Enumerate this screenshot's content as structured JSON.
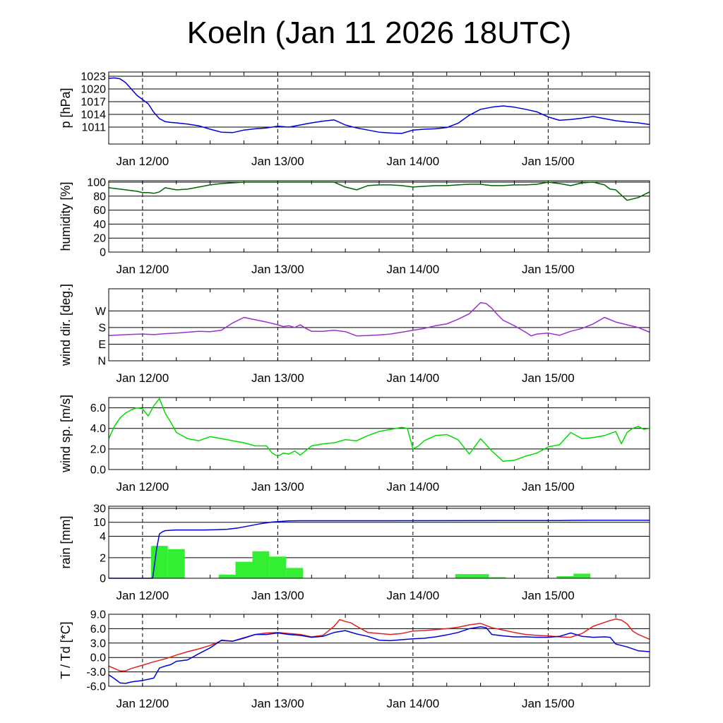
{
  "title": "Koeln (Jan 11 2026 18UTC)",
  "colors": {
    "frame": "#000000",
    "grid": "#000000",
    "background": "#ffffff"
  },
  "x_axis": {
    "unit": "hours since Jan 11 18UTC",
    "range": [
      0,
      96
    ],
    "ticks": [
      {
        "h": 6,
        "label": "Jan 12/00"
      },
      {
        "h": 30,
        "label": "Jan 13/00"
      },
      {
        "h": 54,
        "label": "Jan 14/00"
      },
      {
        "h": 78,
        "label": "Jan 15/00"
      }
    ]
  },
  "chart_data": [
    {
      "type": "line",
      "ylabel": "p [hPa]",
      "ylim": [
        1007,
        1024
      ],
      "yticks": [
        1011,
        1014,
        1017,
        1020,
        1023
      ],
      "series": [
        {
          "name": "pressure",
          "color": "#0000dd",
          "x": [
            0,
            1,
            2,
            3,
            4,
            5,
            6,
            7,
            8,
            9,
            10,
            11,
            12,
            14,
            16,
            18,
            20,
            22,
            24,
            26,
            28,
            30,
            32,
            34,
            36,
            38,
            40,
            42,
            44,
            46,
            48,
            50,
            52,
            54,
            56,
            58,
            60,
            62,
            64,
            66,
            68,
            70,
            72,
            74,
            76,
            78,
            80,
            82,
            84,
            86,
            88,
            90,
            92,
            94,
            96
          ],
          "y": [
            1022.5,
            1022.6,
            1022.4,
            1021.5,
            1020,
            1018.5,
            1017.5,
            1016.5,
            1014.5,
            1013,
            1012.3,
            1012.1,
            1012,
            1011.7,
            1011.3,
            1010.5,
            1009.8,
            1009.7,
            1010.3,
            1010.6,
            1010.8,
            1011.2,
            1011,
            1011.5,
            1012,
            1012.4,
            1012.7,
            1011.5,
            1010.8,
            1010.3,
            1009.8,
            1009.6,
            1009.5,
            1010.3,
            1010.5,
            1010.6,
            1010.9,
            1011.9,
            1013.8,
            1015.2,
            1015.7,
            1016,
            1015.7,
            1015.2,
            1014.6,
            1013.4,
            1012.6,
            1012.8,
            1013.1,
            1013.5,
            1013,
            1012.5,
            1012.2,
            1012,
            1011.6
          ]
        }
      ]
    },
    {
      "type": "line",
      "ylabel": "humidity [%]",
      "ylim": [
        0,
        102
      ],
      "yticks": [
        0,
        20,
        40,
        60,
        80,
        100
      ],
      "series": [
        {
          "name": "relative humidity",
          "color": "#006400",
          "x": [
            0,
            2,
            4,
            5,
            6,
            7,
            8,
            9,
            10,
            12,
            14,
            16,
            18,
            20,
            24,
            28,
            32,
            36,
            38,
            40,
            42,
            44,
            46,
            48,
            50,
            52,
            54,
            56,
            58,
            60,
            62,
            64,
            66,
            68,
            70,
            72,
            74,
            76,
            78,
            80,
            82,
            84,
            86,
            88,
            89,
            90,
            92,
            94,
            96
          ],
          "y": [
            92,
            90,
            88,
            87,
            85,
            85,
            84,
            86,
            92,
            89,
            90,
            93,
            96,
            98,
            100,
            100,
            100,
            100,
            100,
            100,
            93,
            89,
            95,
            96,
            96,
            95,
            93,
            94,
            95,
            95,
            96,
            97,
            97,
            95,
            95,
            96,
            96,
            97,
            100,
            98,
            95,
            99,
            100,
            96,
            90,
            89,
            74,
            78,
            86
          ]
        }
      ]
    },
    {
      "type": "line",
      "ylabel": "wind dir. [deg.]",
      "ylim": [
        0,
        390
      ],
      "yticks": [
        0,
        90,
        180,
        270
      ],
      "yticklabels": [
        "N",
        "E",
        "S",
        "W"
      ],
      "series": [
        {
          "name": "wind direction",
          "color": "#9932cc",
          "x": [
            0,
            2,
            4,
            6,
            8,
            10,
            12,
            14,
            16,
            18,
            20,
            22,
            24,
            26,
            28,
            30,
            31,
            32,
            33,
            34,
            35,
            36,
            38,
            40,
            42,
            44,
            46,
            48,
            50,
            52,
            54,
            56,
            58,
            60,
            62,
            64,
            66,
            67,
            68,
            69,
            70,
            72,
            74,
            75,
            76,
            78,
            80,
            82,
            84,
            86,
            88,
            90,
            92,
            94,
            96
          ],
          "y": [
            137,
            140,
            143,
            145,
            142,
            147,
            150,
            155,
            160,
            158,
            165,
            205,
            235,
            222,
            210,
            195,
            185,
            190,
            180,
            195,
            175,
            160,
            160,
            165,
            158,
            135,
            137,
            140,
            145,
            155,
            165,
            175,
            190,
            200,
            225,
            255,
            315,
            310,
            285,
            250,
            220,
            190,
            155,
            135,
            145,
            150,
            138,
            160,
            175,
            200,
            235,
            210,
            195,
            180,
            155
          ]
        }
      ]
    },
    {
      "type": "line",
      "ylabel": "wind sp. [m/s]",
      "ylim": [
        0,
        7
      ],
      "yticks": [
        0,
        2,
        4,
        6
      ],
      "yticklabels": [
        "0.0",
        "2.0",
        "4.0",
        "6.0"
      ],
      "series": [
        {
          "name": "wind speed",
          "color": "#00dd00",
          "x": [
            0,
            1,
            2,
            3,
            4,
            5,
            6,
            7,
            8,
            9,
            10,
            11,
            12,
            14,
            16,
            18,
            20,
            22,
            24,
            26,
            28,
            29,
            30,
            31,
            32,
            33,
            34,
            36,
            38,
            40,
            42,
            44,
            46,
            48,
            50,
            52,
            53,
            54,
            55,
            56,
            58,
            60,
            62,
            64,
            66,
            68,
            69,
            70,
            72,
            74,
            76,
            78,
            80,
            82,
            84,
            86,
            88,
            90,
            91,
            92,
            93,
            94,
            95,
            96
          ],
          "y": [
            3.0,
            4.2,
            5.0,
            5.5,
            5.8,
            6.0,
            5.9,
            5.2,
            6.2,
            6.9,
            5.5,
            4.6,
            3.6,
            3.0,
            2.8,
            3.2,
            3.0,
            2.8,
            2.6,
            2.3,
            2.3,
            1.6,
            1.3,
            1.6,
            1.5,
            1.8,
            1.4,
            2.3,
            2.5,
            2.6,
            2.9,
            2.8,
            3.3,
            3.7,
            3.9,
            4.1,
            4.0,
            2.0,
            2.3,
            2.8,
            3.3,
            3.4,
            2.9,
            1.5,
            3.0,
            1.8,
            1.3,
            0.8,
            0.9,
            1.3,
            1.6,
            2.2,
            2.4,
            3.6,
            3.0,
            3.1,
            3.3,
            3.7,
            2.5,
            3.6,
            4.0,
            4.2,
            3.9,
            4.0
          ]
        }
      ]
    },
    {
      "type": "bar",
      "ylabel": "rain [mm]",
      "ylim": [
        0,
        30
      ],
      "yticks": [
        0,
        2,
        4,
        10,
        30
      ],
      "yticklabels": [
        "0",
        "2",
        "4",
        "10",
        "30"
      ],
      "scale": "nonlinear",
      "series": [
        {
          "name": "hourly rain",
          "color": "#33ee33",
          "bars": [
            {
              "from": 7.5,
              "to": 10.5,
              "value": 3.1
            },
            {
              "from": 10.5,
              "to": 13.5,
              "value": 2.8
            },
            {
              "from": 19.5,
              "to": 22.5,
              "value": 0.35
            },
            {
              "from": 22.5,
              "to": 25.5,
              "value": 1.6
            },
            {
              "from": 25.5,
              "to": 28.5,
              "value": 2.6
            },
            {
              "from": 28.5,
              "to": 31.5,
              "value": 2.1
            },
            {
              "from": 31.5,
              "to": 34.5,
              "value": 1.0
            },
            {
              "from": 61.5,
              "to": 64.5,
              "value": 0.4
            },
            {
              "from": 64.5,
              "to": 67.5,
              "value": 0.4
            },
            {
              "from": 67.5,
              "to": 70.5,
              "value": 0.1
            },
            {
              "from": 79.5,
              "to": 82.5,
              "value": 0.2
            },
            {
              "from": 82.5,
              "to": 85.5,
              "value": 0.45
            }
          ]
        },
        {
          "name": "accumulated rain",
          "color": "#0000dd",
          "x": [
            0,
            7.8,
            8.5,
            9,
            9.5,
            10,
            11,
            12,
            14,
            17,
            19,
            21,
            23,
            25,
            27,
            29,
            31,
            32,
            34,
            40,
            50,
            60,
            70,
            80,
            82,
            85,
            90,
            96
          ],
          "y": [
            0,
            0,
            2.8,
            5.0,
            5.9,
            6.4,
            6.6,
            6.7,
            6.7,
            6.7,
            6.8,
            7.0,
            7.6,
            8.5,
            9.4,
            10.4,
            11.5,
            12.0,
            12.3,
            12.3,
            12.3,
            12.4,
            12.5,
            12.6,
            12.8,
            12.9,
            12.9,
            12.9
          ]
        }
      ]
    },
    {
      "type": "line",
      "ylabel": "T / Td [*C]",
      "ylim": [
        -6,
        9
      ],
      "yticks": [
        -6,
        -3,
        0,
        3,
        6,
        9
      ],
      "yticklabels": [
        "-6.0",
        "-3.0",
        "0.0",
        "3.0",
        "6.0",
        "9.0"
      ],
      "series": [
        {
          "name": "T",
          "color": "#dd2222",
          "x": [
            0,
            1,
            2,
            3,
            4,
            6,
            8,
            10,
            12,
            14,
            16,
            18,
            20,
            22,
            24,
            26,
            28,
            30,
            32,
            34,
            36,
            38,
            40,
            41,
            42,
            43,
            44,
            46,
            48,
            50,
            52,
            54,
            56,
            58,
            60,
            62,
            64,
            66,
            68,
            70,
            72,
            74,
            76,
            78,
            80,
            82,
            84,
            86,
            88,
            89,
            90,
            91,
            92,
            93,
            94,
            96
          ],
          "y": [
            -1.8,
            -2.3,
            -2.8,
            -2.8,
            -2.3,
            -1.6,
            -0.9,
            -0.3,
            0.5,
            1.2,
            1.8,
            2.5,
            3.5,
            3.4,
            4.0,
            4.8,
            5.1,
            5.2,
            5.0,
            4.8,
            4.3,
            4.6,
            6.5,
            7.9,
            7.5,
            7.2,
            6.5,
            5.2,
            5.0,
            4.8,
            5.0,
            5.5,
            5.6,
            5.8,
            6.0,
            6.3,
            6.8,
            7.1,
            6.2,
            5.7,
            5.2,
            4.8,
            4.6,
            4.5,
            4.3,
            4.2,
            5.0,
            6.5,
            7.3,
            7.7,
            8.0,
            7.8,
            7.0,
            5.5,
            4.8,
            3.8
          ]
        },
        {
          "name": "Td",
          "color": "#0000dd",
          "x": [
            0,
            1,
            2,
            3,
            4,
            6,
            8,
            9,
            10,
            11,
            12,
            14,
            16,
            18,
            20,
            22,
            24,
            26,
            28,
            30,
            32,
            34,
            36,
            38,
            40,
            42,
            44,
            46,
            48,
            50,
            52,
            54,
            56,
            58,
            60,
            62,
            64,
            66,
            67,
            68,
            70,
            72,
            74,
            76,
            78,
            80,
            82,
            84,
            86,
            88,
            89,
            90,
            92,
            94,
            96
          ],
          "y": [
            -3.6,
            -4.4,
            -5.3,
            -5.4,
            -5.1,
            -4.8,
            -4.3,
            -2.2,
            -1.8,
            -1.5,
            -0.8,
            -0.5,
            0.8,
            2.0,
            3.6,
            3.4,
            4.1,
            4.8,
            4.8,
            5.1,
            4.8,
            4.6,
            4.2,
            4.4,
            5.2,
            5.6,
            4.9,
            4.4,
            3.6,
            3.5,
            3.7,
            3.9,
            4.0,
            4.3,
            4.7,
            5.2,
            6.0,
            6.4,
            6.2,
            4.8,
            4.5,
            4.3,
            4.3,
            4.2,
            4.2,
            4.4,
            5.1,
            4.4,
            4.2,
            4.3,
            4.2,
            2.8,
            2.2,
            1.4,
            1.2
          ]
        }
      ]
    }
  ]
}
